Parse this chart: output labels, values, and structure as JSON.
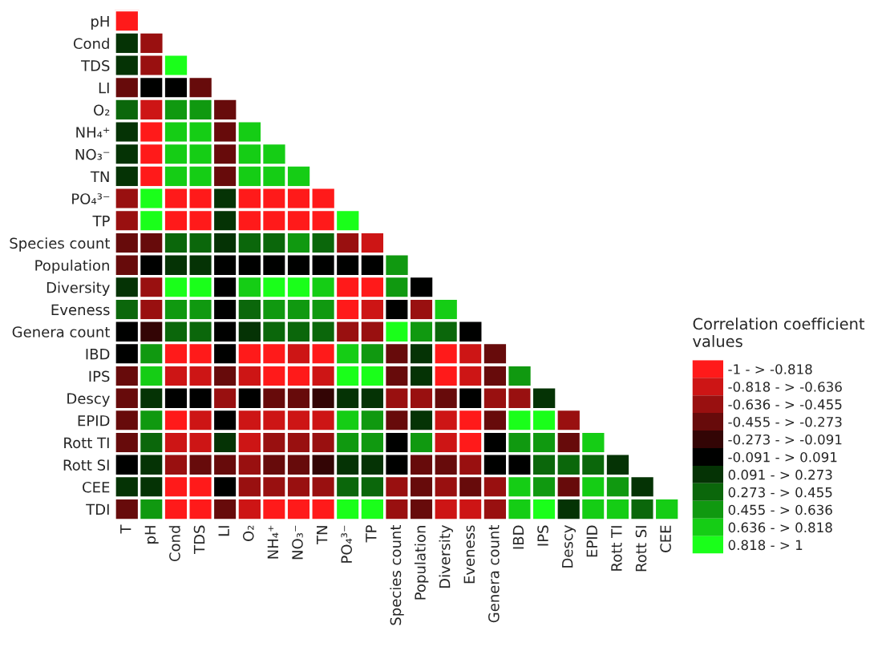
{
  "chart_data": {
    "type": "heatmap",
    "clabel": "Correlation coefficient values",
    "categories": [
      "T",
      "pH",
      "Cond",
      "TDS",
      "LI",
      "O₂",
      "NH₄⁺",
      "NO₃⁻",
      "TN",
      "PO₄³⁻",
      "TP",
      "Species count",
      "Population",
      "Diversity",
      "Eveness",
      "Genera count",
      "IBD",
      "IPS",
      "Descy",
      "EPID",
      "Rott TI",
      "Rott SI",
      "CEE"
    ],
    "y_categories": [
      "pH",
      "Cond",
      "TDS",
      "LI",
      "O₂",
      "NH₄⁺",
      "NO₃⁻",
      "TN",
      "PO₄³⁻",
      "TP",
      "Species count",
      "Population",
      "Diversity",
      "Eveness",
      "Genera count",
      "IBD",
      "IPS",
      "Descy",
      "EPID",
      "Rott TI",
      "Rott SI",
      "CEE",
      "TDI"
    ],
    "cells": [
      [
        -0.909,
        null,
        null,
        null,
        null,
        null,
        null,
        null,
        null,
        null,
        null,
        null,
        null,
        null,
        null,
        null,
        null,
        null,
        null,
        null,
        null,
        null,
        null
      ],
      [
        0.182,
        -0.545,
        null,
        null,
        null,
        null,
        null,
        null,
        null,
        null,
        null,
        null,
        null,
        null,
        null,
        null,
        null,
        null,
        null,
        null,
        null,
        null,
        null
      ],
      [
        0.182,
        -0.545,
        0.909,
        null,
        null,
        null,
        null,
        null,
        null,
        null,
        null,
        null,
        null,
        null,
        null,
        null,
        null,
        null,
        null,
        null,
        null,
        null,
        null
      ],
      [
        -0.364,
        0,
        0,
        -0.364,
        null,
        null,
        null,
        null,
        null,
        null,
        null,
        null,
        null,
        null,
        null,
        null,
        null,
        null,
        null,
        null,
        null,
        null,
        null
      ],
      [
        0.364,
        -0.727,
        0.545,
        0.545,
        -0.364,
        null,
        null,
        null,
        null,
        null,
        null,
        null,
        null,
        null,
        null,
        null,
        null,
        null,
        null,
        null,
        null,
        null,
        null
      ],
      [
        0.182,
        -0.909,
        0.727,
        0.727,
        -0.364,
        0.727,
        null,
        null,
        null,
        null,
        null,
        null,
        null,
        null,
        null,
        null,
        null,
        null,
        null,
        null,
        null,
        null,
        null
      ],
      [
        0.182,
        -0.909,
        0.727,
        0.727,
        -0.364,
        0.727,
        0.727,
        null,
        null,
        null,
        null,
        null,
        null,
        null,
        null,
        null,
        null,
        null,
        null,
        null,
        null,
        null,
        null
      ],
      [
        0.182,
        -0.909,
        0.727,
        0.727,
        -0.364,
        0.727,
        0.727,
        0.727,
        null,
        null,
        null,
        null,
        null,
        null,
        null,
        null,
        null,
        null,
        null,
        null,
        null,
        null,
        null
      ],
      [
        -0.545,
        0.909,
        -0.909,
        -0.909,
        0.182,
        -0.909,
        -0.909,
        -0.909,
        -0.909,
        null,
        null,
        null,
        null,
        null,
        null,
        null,
        null,
        null,
        null,
        null,
        null,
        null,
        null
      ],
      [
        -0.545,
        0.909,
        -0.909,
        -0.909,
        0.182,
        -0.909,
        -0.909,
        -0.909,
        -0.909,
        0.909,
        null,
        null,
        null,
        null,
        null,
        null,
        null,
        null,
        null,
        null,
        null,
        null,
        null
      ],
      [
        -0.364,
        -0.364,
        0.364,
        0.364,
        0.182,
        0.364,
        0.364,
        0.545,
        0.364,
        -0.545,
        -0.727,
        null,
        null,
        null,
        null,
        null,
        null,
        null,
        null,
        null,
        null,
        null,
        null
      ],
      [
        -0.364,
        0,
        0.182,
        0.182,
        0,
        0,
        0,
        0,
        0,
        0,
        0,
        0.545,
        null,
        null,
        null,
        null,
        null,
        null,
        null,
        null,
        null,
        null,
        null
      ],
      [
        0.182,
        -0.545,
        0.909,
        0.909,
        0,
        0.727,
        0.909,
        0.909,
        0.727,
        -0.909,
        -0.909,
        0.545,
        0,
        null,
        null,
        null,
        null,
        null,
        null,
        null,
        null,
        null,
        null
      ],
      [
        0.364,
        -0.545,
        0.545,
        0.545,
        0,
        0.364,
        0.545,
        0.545,
        0.545,
        -0.909,
        -0.727,
        0,
        -0.545,
        0.727,
        null,
        null,
        null,
        null,
        null,
        null,
        null,
        null,
        null
      ],
      [
        0,
        -0.182,
        0.364,
        0.364,
        0,
        0.182,
        0.364,
        0.364,
        0.364,
        -0.545,
        -0.545,
        0.909,
        0.545,
        0.364,
        0,
        null,
        null,
        null,
        null,
        null,
        null,
        null,
        null
      ],
      [
        0,
        0.545,
        -0.909,
        -0.909,
        0,
        -0.909,
        -0.909,
        -0.727,
        -0.909,
        0.727,
        0.545,
        -0.364,
        0.182,
        -0.909,
        -0.727,
        -0.364,
        null,
        null,
        null,
        null,
        null,
        null,
        null
      ],
      [
        -0.364,
        0.727,
        -0.727,
        -0.727,
        -0.364,
        -0.727,
        -0.909,
        -0.909,
        -0.727,
        0.909,
        0.909,
        -0.364,
        0.182,
        -0.909,
        -0.727,
        -0.364,
        0.545,
        null,
        null,
        null,
        null,
        null,
        null
      ],
      [
        -0.364,
        0.182,
        0,
        0,
        -0.545,
        0,
        -0.364,
        -0.364,
        -0.182,
        0.182,
        0.182,
        -0.545,
        -0.545,
        -0.364,
        0,
        -0.545,
        -0.545,
        0.182,
        null,
        null,
        null,
        null,
        null
      ],
      [
        -0.364,
        0.545,
        -0.909,
        -0.727,
        0,
        -0.727,
        -0.727,
        -0.727,
        -0.727,
        0.727,
        0.545,
        -0.364,
        0.182,
        -0.727,
        -0.909,
        -0.364,
        0.909,
        0.909,
        -0.545,
        null,
        null,
        null,
        null
      ],
      [
        -0.364,
        0.364,
        -0.727,
        -0.727,
        0.182,
        -0.727,
        -0.545,
        -0.545,
        -0.545,
        0.545,
        0.545,
        0,
        0.545,
        -0.727,
        -0.909,
        0,
        0.545,
        0.545,
        -0.364,
        0.727,
        null,
        null,
        null
      ],
      [
        0,
        0.182,
        -0.545,
        -0.364,
        -0.364,
        -0.545,
        -0.364,
        -0.364,
        -0.182,
        0.182,
        0.182,
        0,
        -0.364,
        -0.364,
        -0.545,
        0,
        0,
        0.364,
        0.364,
        0.364,
        0.182,
        null,
        null
      ],
      [
        0.182,
        0.182,
        -0.909,
        -0.909,
        0,
        -0.545,
        -0.545,
        -0.545,
        -0.545,
        0.364,
        0.364,
        -0.545,
        -0.364,
        -0.545,
        -0.364,
        -0.545,
        0.727,
        0.545,
        -0.364,
        0.727,
        0.545,
        0.182,
        null
      ],
      [
        -0.364,
        0.545,
        -0.909,
        -0.909,
        -0.364,
        -0.727,
        -0.909,
        -0.909,
        -0.909,
        0.909,
        0.909,
        -0.545,
        -0.364,
        -0.727,
        -0.727,
        -0.545,
        0.727,
        0.909,
        0.182,
        0.727,
        0.727,
        0.364,
        0.727
      ]
    ],
    "clim": [
      -1,
      1
    ],
    "cticks": [
      {
        "value": -0.909,
        "label": "-1 - > -0.818"
      },
      {
        "value": -0.727,
        "label": "-0.818 - > -0.636"
      },
      {
        "value": -0.545,
        "label": "-0.636 - > -0.455"
      },
      {
        "value": -0.364,
        "label": "-0.455 - > -0.273"
      },
      {
        "value": -0.182,
        "label": "-0.273 - > -0.091"
      },
      {
        "value": 0,
        "label": "-0.091 - > 0.091"
      },
      {
        "value": 0.182,
        "label": "0.091 - > 0.273"
      },
      {
        "value": 0.364,
        "label": "0.273 - > 0.455"
      },
      {
        "value": 0.545,
        "label": "0.455 - > 0.636"
      },
      {
        "value": 0.727,
        "label": "0.636 - > 0.818"
      },
      {
        "value": 0.909,
        "label": "0.818 - > 1"
      }
    ]
  }
}
